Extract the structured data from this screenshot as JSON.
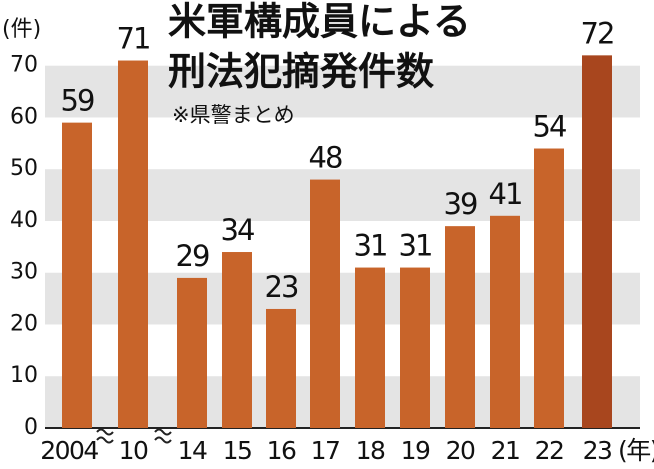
{
  "chart_data": {
    "type": "bar",
    "title": [
      "米軍構成員による",
      "刑法犯摘発件数"
    ],
    "subtitle": "※県警まとめ",
    "y_unit": "(件)",
    "x_unit": "(年)",
    "categories": [
      "2004",
      "10",
      "14",
      "15",
      "16",
      "17",
      "18",
      "19",
      "20",
      "21",
      "22",
      "23"
    ],
    "values": [
      59,
      71,
      29,
      34,
      23,
      48,
      31,
      31,
      39,
      41,
      54,
      72
    ],
    "colors": [
      "#c8642a",
      "#c8642a",
      "#c8642a",
      "#c8642a",
      "#c8642a",
      "#c8642a",
      "#c8642a",
      "#c8642a",
      "#c8642a",
      "#c8642a",
      "#c8642a",
      "#a8461e"
    ],
    "ylim": [
      0,
      74
    ],
    "yticks": [
      0,
      10,
      20,
      30,
      40,
      50,
      60,
      70
    ],
    "grid": "bands"
  }
}
